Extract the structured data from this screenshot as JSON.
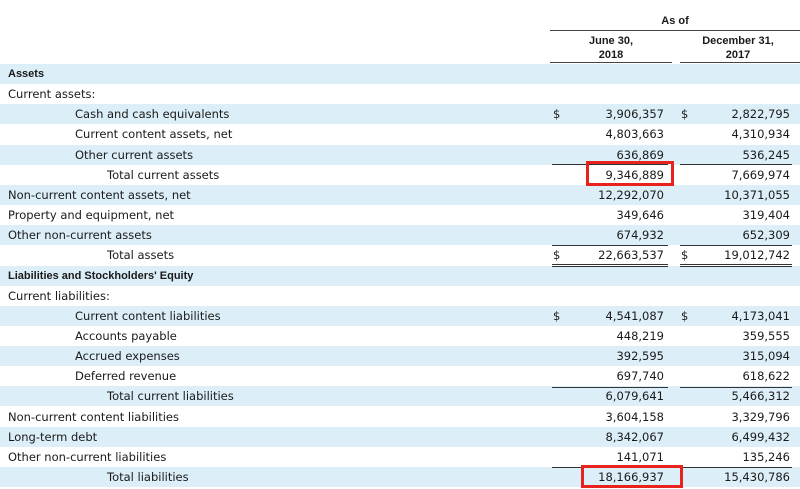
{
  "header": {
    "as_of": "As of",
    "col1": [
      "June 30,",
      "2018"
    ],
    "col2": [
      "December 31,",
      "2017"
    ]
  },
  "rows": [
    {
      "label": "Assets",
      "bold": true,
      "shade": true
    },
    {
      "label": "Current assets:",
      "shade": false
    },
    {
      "label": "Cash and cash equivalents",
      "indent": 1,
      "cur1": "$",
      "v1": "3,906,357",
      "cur2": "$",
      "v2": "2,822,795",
      "shade": true
    },
    {
      "label": "Current content assets, net",
      "indent": 1,
      "v1": "4,803,663",
      "v2": "4,310,934",
      "shade": false
    },
    {
      "label": "Other current assets",
      "indent": 1,
      "v1": "636,869",
      "v2": "536,245",
      "shade": true
    },
    {
      "label": "Total current assets",
      "indent": 2,
      "v1": "9,346,889",
      "v2": "7,669,974",
      "shade": false
    },
    {
      "label": "Non-current content assets, net",
      "v1": "12,292,070",
      "v2": "10,371,055",
      "shade": true
    },
    {
      "label": "Property and equipment, net",
      "v1": "349,646",
      "v2": "319,404",
      "shade": false
    },
    {
      "label": "Other non-current assets",
      "v1": "674,932",
      "v2": "652,309",
      "shade": true
    },
    {
      "label": "Total assets",
      "indent": 2,
      "cur1": "$",
      "v1": "22,663,537",
      "cur2": "$",
      "v2": "19,012,742",
      "shade": false
    },
    {
      "label": "Liabilities and Stockholders' Equity",
      "bold": true,
      "shade": true
    },
    {
      "label": "Current liabilities:",
      "shade": false
    },
    {
      "label": "Current content liabilities",
      "indent": 1,
      "cur1": "$",
      "v1": "4,541,087",
      "cur2": "$",
      "v2": "4,173,041",
      "shade": true
    },
    {
      "label": "Accounts payable",
      "indent": 1,
      "v1": "448,219",
      "v2": "359,555",
      "shade": false
    },
    {
      "label": "Accrued expenses",
      "indent": 1,
      "v1": "392,595",
      "v2": "315,094",
      "shade": true
    },
    {
      "label": "Deferred revenue",
      "indent": 1,
      "v1": "697,740",
      "v2": "618,622",
      "shade": false
    },
    {
      "label": "Total current liabilities",
      "indent": 2,
      "v1": "6,079,641",
      "v2": "5,466,312",
      "shade": true
    },
    {
      "label": "Non-current content liabilities",
      "v1": "3,604,158",
      "v2": "3,329,796",
      "shade": false
    },
    {
      "label": "Long-term debt",
      "v1": "8,342,067",
      "v2": "6,499,432",
      "shade": true
    },
    {
      "label": "Other non-current liabilities",
      "v1": "141,071",
      "v2": "135,246",
      "shade": false
    },
    {
      "label": "Total liabilities",
      "indent": 2,
      "v1": "18,166,937",
      "v2": "15,430,786",
      "shade": true
    }
  ],
  "highlight_color": "#e8231d"
}
